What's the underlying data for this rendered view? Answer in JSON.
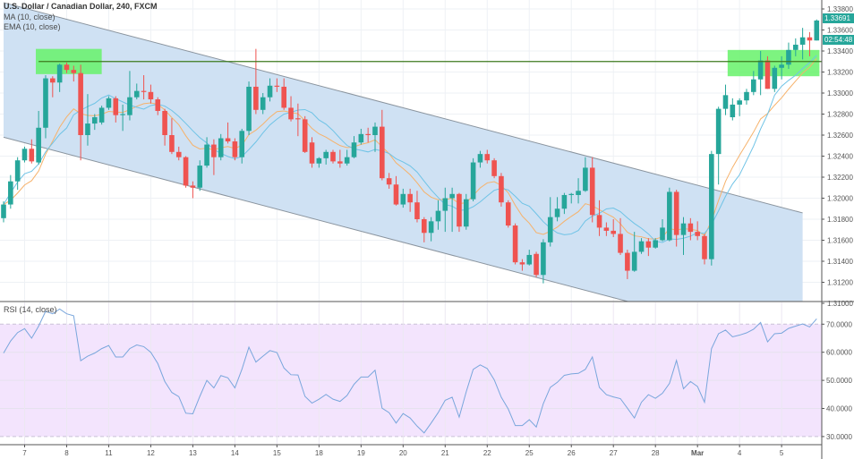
{
  "header": {
    "symbol_title": "U.S. Dollar / Canadian Dollar, 240, FXCM",
    "ma_label": "MA (10, close)",
    "ema_label": "EMA (10, close)",
    "rsi_label": "RSI (14, close)",
    "last_price": "1.33691",
    "countdown": "02:54:48"
  },
  "colors": {
    "up": "#26a69a",
    "down": "#ef5350",
    "ma": "#6fc3e6",
    "ema": "#f6b26b",
    "channel_fill": "#cfe1f3",
    "channel_stroke": "#8a949e",
    "zone_fill": "#66f26a",
    "hline": "#3d7a1e",
    "rsi_line": "#79a6dc",
    "rsi_band": "#f3e4fd"
  },
  "chart_data": [
    {
      "type": "candlestick",
      "title": "U.S. Dollar / Canadian Dollar, 240, FXCM",
      "ylim": [
        1.31,
        1.339
      ],
      "y_ticks": [
        "1.33800",
        "1.33600",
        "1.33400",
        "1.33200",
        "1.33000",
        "1.32800",
        "1.32600",
        "1.32400",
        "1.32200",
        "1.32000",
        "1.31800",
        "1.31600",
        "1.31400",
        "1.31200",
        "1.31000"
      ],
      "y_tick_values": [
        1.338,
        1.336,
        1.334,
        1.332,
        1.33,
        1.328,
        1.326,
        1.324,
        1.322,
        1.32,
        1.318,
        1.316,
        1.314,
        1.312,
        1.31
      ],
      "x_ticks": [
        {
          "bar": 3,
          "label": "7"
        },
        {
          "bar": 9,
          "label": "8"
        },
        {
          "bar": 15,
          "label": "11"
        },
        {
          "bar": 21,
          "label": "12"
        },
        {
          "bar": 27,
          "label": "13"
        },
        {
          "bar": 33,
          "label": "14"
        },
        {
          "bar": 39,
          "label": "15"
        },
        {
          "bar": 45,
          "label": "18"
        },
        {
          "bar": 51,
          "label": "19"
        },
        {
          "bar": 57,
          "label": "20"
        },
        {
          "bar": 63,
          "label": "21"
        },
        {
          "bar": 69,
          "label": "22"
        },
        {
          "bar": 75,
          "label": "25"
        },
        {
          "bar": 81,
          "label": "26"
        },
        {
          "bar": 87,
          "label": "27"
        },
        {
          "bar": 93,
          "label": "28"
        },
        {
          "bar": 99,
          "label": "Mar"
        },
        {
          "bar": 105,
          "label": "4"
        },
        {
          "bar": 111,
          "label": "5"
        }
      ],
      "ohlc": [
        [
          1.3181,
          1.3197,
          1.3177,
          1.3194
        ],
        [
          1.3194,
          1.3222,
          1.319,
          1.3216
        ],
        [
          1.3216,
          1.3239,
          1.3208,
          1.3236
        ],
        [
          1.3236,
          1.3249,
          1.3234,
          1.3247
        ],
        [
          1.3247,
          1.3256,
          1.3233,
          1.3235
        ],
        [
          1.3234,
          1.3283,
          1.3232,
          1.3267
        ],
        [
          1.3267,
          1.3317,
          1.3257,
          1.3314
        ],
        [
          1.3314,
          1.3316,
          1.3296,
          1.331
        ],
        [
          1.331,
          1.3328,
          1.3301,
          1.3327
        ],
        [
          1.3327,
          1.3329,
          1.3319,
          1.3322
        ],
        [
          1.3322,
          1.3326,
          1.3311,
          1.3319
        ],
        [
          1.3319,
          1.3327,
          1.3236,
          1.326
        ],
        [
          1.326,
          1.3299,
          1.325,
          1.3271
        ],
        [
          1.3271,
          1.328,
          1.3265,
          1.3277
        ],
        [
          1.3272,
          1.3288,
          1.327,
          1.3286
        ],
        [
          1.3286,
          1.3297,
          1.3284,
          1.3295
        ],
        [
          1.3295,
          1.3297,
          1.3272,
          1.3279
        ],
        [
          1.3279,
          1.3289,
          1.3264,
          1.328
        ],
        [
          1.3279,
          1.3321,
          1.3274,
          1.3296
        ],
        [
          1.3296,
          1.3309,
          1.3294,
          1.3302
        ],
        [
          1.3302,
          1.3317,
          1.3294,
          1.3301
        ],
        [
          1.3301,
          1.3308,
          1.329,
          1.3294
        ],
        [
          1.3294,
          1.3296,
          1.3279,
          1.3283
        ],
        [
          1.3283,
          1.3285,
          1.325,
          1.326
        ],
        [
          1.326,
          1.3276,
          1.3242,
          1.3244
        ],
        [
          1.3244,
          1.3249,
          1.3236,
          1.3239
        ],
        [
          1.3239,
          1.324,
          1.321,
          1.3212
        ],
        [
          1.3212,
          1.3216,
          1.32,
          1.321
        ],
        [
          1.321,
          1.3236,
          1.3207,
          1.3231
        ],
        [
          1.3231,
          1.3258,
          1.3229,
          1.3251
        ],
        [
          1.3251,
          1.3256,
          1.3222,
          1.3239
        ],
        [
          1.3239,
          1.3261,
          1.3236,
          1.3257
        ],
        [
          1.3257,
          1.3272,
          1.3252,
          1.3254
        ],
        [
          1.3254,
          1.3257,
          1.3236,
          1.3239
        ],
        [
          1.3239,
          1.3266,
          1.3233,
          1.3264
        ],
        [
          1.3264,
          1.3311,
          1.326,
          1.3306
        ],
        [
          1.3306,
          1.3342,
          1.328,
          1.3284
        ],
        [
          1.3284,
          1.33,
          1.328,
          1.3296
        ],
        [
          1.3296,
          1.3314,
          1.3292,
          1.3307
        ],
        [
          1.3307,
          1.3314,
          1.3301,
          1.3306
        ],
        [
          1.3306,
          1.3314,
          1.3284,
          1.3286
        ],
        [
          1.3286,
          1.3297,
          1.3273,
          1.3275
        ],
        [
          1.3276,
          1.329,
          1.3259,
          1.3275
        ],
        [
          1.3275,
          1.3278,
          1.3243,
          1.3244
        ],
        [
          1.3253,
          1.3258,
          1.3229,
          1.3233
        ],
        [
          1.3233,
          1.3239,
          1.3229,
          1.3238
        ],
        [
          1.3238,
          1.3246,
          1.3232,
          1.3244
        ],
        [
          1.3244,
          1.3246,
          1.3233,
          1.3235
        ],
        [
          1.3235,
          1.3246,
          1.3229,
          1.3233
        ],
        [
          1.3233,
          1.3246,
          1.3231,
          1.3239
        ],
        [
          1.3239,
          1.3259,
          1.3238,
          1.3253
        ],
        [
          1.3253,
          1.3266,
          1.3251,
          1.3261
        ],
        [
          1.3261,
          1.3267,
          1.3253,
          1.326
        ],
        [
          1.326,
          1.3272,
          1.3244,
          1.3268
        ],
        [
          1.3268,
          1.3284,
          1.3217,
          1.3219
        ],
        [
          1.3219,
          1.3224,
          1.3209,
          1.3213
        ],
        [
          1.3213,
          1.3221,
          1.3193,
          1.3194
        ],
        [
          1.3194,
          1.3209,
          1.3191,
          1.3204
        ],
        [
          1.3204,
          1.3209,
          1.3187,
          1.3196
        ],
        [
          1.3196,
          1.3207,
          1.3177,
          1.318
        ],
        [
          1.318,
          1.3182,
          1.3158,
          1.3167
        ],
        [
          1.3167,
          1.3182,
          1.3159,
          1.3178
        ],
        [
          1.3178,
          1.3198,
          1.317,
          1.3188
        ],
        [
          1.3188,
          1.321,
          1.3168,
          1.32
        ],
        [
          1.32,
          1.321,
          1.3168,
          1.3204
        ],
        [
          1.3204,
          1.3205,
          1.3168,
          1.3173
        ],
        [
          1.3173,
          1.3204,
          1.317,
          1.3199
        ],
        [
          1.3199,
          1.3238,
          1.3197,
          1.3234
        ],
        [
          1.3234,
          1.3245,
          1.3229,
          1.3242
        ],
        [
          1.3242,
          1.3246,
          1.3233,
          1.3236
        ],
        [
          1.3236,
          1.3238,
          1.3219,
          1.3221
        ],
        [
          1.3221,
          1.3224,
          1.3192,
          1.3196
        ],
        [
          1.3196,
          1.3198,
          1.3172,
          1.3174
        ],
        [
          1.3174,
          1.3176,
          1.3137,
          1.3139
        ],
        [
          1.3139,
          1.3142,
          1.3131,
          1.3137
        ],
        [
          1.3137,
          1.3151,
          1.3136,
          1.3146
        ],
        [
          1.3147,
          1.3149,
          1.3125,
          1.3127
        ],
        [
          1.3127,
          1.3161,
          1.3119,
          1.3158
        ],
        [
          1.3158,
          1.3201,
          1.3154,
          1.3182
        ],
        [
          1.3182,
          1.3201,
          1.3178,
          1.319
        ],
        [
          1.319,
          1.3205,
          1.3185,
          1.3203
        ],
        [
          1.3203,
          1.3205,
          1.3195,
          1.3204
        ],
        [
          1.3203,
          1.3219,
          1.3195,
          1.3207
        ],
        [
          1.3207,
          1.3239,
          1.3206,
          1.3229
        ],
        [
          1.3229,
          1.3239,
          1.3177,
          1.3184
        ],
        [
          1.3184,
          1.3198,
          1.3164,
          1.3172
        ],
        [
          1.3172,
          1.3177,
          1.3164,
          1.3169
        ],
        [
          1.3169,
          1.318,
          1.3163,
          1.3166
        ],
        [
          1.3166,
          1.3181,
          1.3146,
          1.3148
        ],
        [
          1.3148,
          1.3151,
          1.3123,
          1.3131
        ],
        [
          1.3131,
          1.3168,
          1.313,
          1.3149
        ],
        [
          1.3149,
          1.3162,
          1.3147,
          1.3159
        ],
        [
          1.3159,
          1.3162,
          1.3145,
          1.3153
        ],
        [
          1.3153,
          1.3162,
          1.3152,
          1.316
        ],
        [
          1.316,
          1.318,
          1.3159,
          1.3172
        ],
        [
          1.316,
          1.321,
          1.3159,
          1.3206
        ],
        [
          1.3206,
          1.3208,
          1.3154,
          1.3165
        ],
        [
          1.3165,
          1.3182,
          1.3146,
          1.3176
        ],
        [
          1.3176,
          1.3181,
          1.316,
          1.3168
        ],
        [
          1.3168,
          1.3178,
          1.316,
          1.3164
        ],
        [
          1.3164,
          1.3166,
          1.3137,
          1.3142
        ],
        [
          1.3142,
          1.3245,
          1.3136,
          1.3242
        ],
        [
          1.3242,
          1.3287,
          1.3213,
          1.3285
        ],
        [
          1.3285,
          1.3308,
          1.3279,
          1.3298
        ],
        [
          1.3277,
          1.3295,
          1.3274,
          1.3289
        ],
        [
          1.3289,
          1.3295,
          1.3278,
          1.3293
        ],
        [
          1.3293,
          1.3304,
          1.3289,
          1.3301
        ],
        [
          1.3301,
          1.3321,
          1.3298,
          1.3313
        ],
        [
          1.3313,
          1.334,
          1.3298,
          1.3331
        ],
        [
          1.3331,
          1.3335,
          1.3304,
          1.3304
        ],
        [
          1.3304,
          1.3326,
          1.3301,
          1.3324
        ],
        [
          1.3324,
          1.3335,
          1.3313,
          1.3327
        ],
        [
          1.3327,
          1.3348,
          1.3323,
          1.3341
        ],
        [
          1.3341,
          1.3352,
          1.3335,
          1.3346
        ],
        [
          1.3346,
          1.3362,
          1.3332,
          1.3353
        ],
        [
          1.3353,
          1.3358,
          1.3335,
          1.335
        ],
        [
          1.335,
          1.337,
          1.335,
          1.3369
        ]
      ],
      "indicators": [
        {
          "name": "MA (10, close)",
          "period": 10
        },
        {
          "name": "EMA (10, close)",
          "period": 10
        }
      ],
      "drawings": {
        "channel": {
          "upper": [
            [
              0,
              1.3386
            ],
            [
              114,
              1.3186
            ]
          ],
          "lower": [
            [
              0,
              1.3258
            ],
            [
              114,
              1.3058
            ]
          ]
        },
        "horizontal_line": {
          "price": 1.333,
          "from_bar": 5
        },
        "zones": [
          {
            "from_bar": 4.6,
            "to_bar": 14,
            "top": 1.3342,
            "bottom": 1.3318
          },
          {
            "from_bar": 103.3,
            "to_bar": 116.4,
            "top": 1.3341,
            "bottom": 1.3316
          }
        ]
      }
    },
    {
      "type": "line",
      "title": "RSI (14, close)",
      "ylim": [
        27,
        78
      ],
      "band": [
        30,
        70
      ],
      "y_ticks": [
        "70.0000",
        "60.0000",
        "50.0000",
        "40.0000",
        "30.0000"
      ],
      "y_tick_values": [
        70,
        60,
        50,
        40,
        30
      ],
      "values": [
        59.7,
        64,
        67,
        68.4,
        65,
        69.3,
        74.6,
        73.7,
        75.4,
        73.7,
        73,
        57,
        58.6,
        59.7,
        61.3,
        62.4,
        58.3,
        58.3,
        61.3,
        62.6,
        62,
        60,
        56,
        49.6,
        45.7,
        44.2,
        38.3,
        38.1,
        44.3,
        50,
        47.3,
        51.7,
        50.9,
        47.3,
        53.9,
        61.8,
        56.5,
        58.6,
        60.6,
        59.9,
        54.4,
        52,
        51.9,
        44.3,
        41.9,
        43.3,
        45,
        43.3,
        42.5,
        44.6,
        48.6,
        51.2,
        51.2,
        53.6,
        40.1,
        38.5,
        34.8,
        38.2,
        36.6,
        33.7,
        31.3,
        34.8,
        38.5,
        42.9,
        44,
        36.9,
        45.9,
        53.9,
        55.5,
        54.2,
        50.2,
        44,
        39.8,
        33.9,
        33.9,
        36,
        33.4,
        41.7,
        47.5,
        49.3,
        51.8,
        52.3,
        52.5,
        53.9,
        58.3,
        47.5,
        44.9,
        44.1,
        43.5,
        40.1,
        36.6,
        42.2,
        44.9,
        43.6,
        45.4,
        48.9,
        57.1,
        47,
        49.6,
        47.8,
        42.2,
        61.3,
        66.6,
        67.9,
        65.5,
        66.1,
        66.9,
        68.2,
        70.6,
        63.7,
        66.6,
        66.8,
        68.5,
        69.3,
        70.1,
        69,
        71.9
      ]
    }
  ]
}
